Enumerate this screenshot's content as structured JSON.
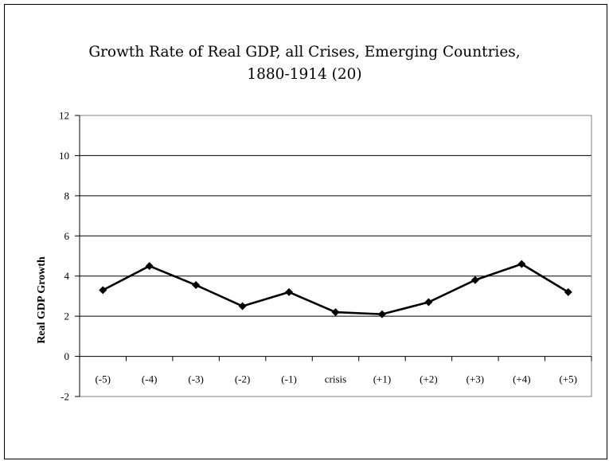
{
  "chart_data": {
    "type": "line",
    "title_line1": "Growth Rate of Real GDP, all Crises, Emerging Countries,",
    "title_line2": "1880-1914 (20)",
    "xlabel": "",
    "ylabel": "Real GDP Growth",
    "categories": [
      "(-5)",
      "(-4)",
      "(-3)",
      "(-2)",
      "(-1)",
      "crisis",
      "(+1)",
      "(+2)",
      "(+3)",
      "(+4)",
      "(+5)"
    ],
    "series": [
      {
        "values": [
          3.3,
          4.5,
          3.55,
          2.5,
          3.2,
          2.2,
          2.1,
          2.7,
          3.8,
          4.6,
          3.2
        ]
      }
    ],
    "ylim": [
      -2,
      12
    ],
    "yticks": [
      "-2",
      "0",
      "2",
      "4",
      "6",
      "8",
      "10",
      "12"
    ],
    "grid": true,
    "colors": {
      "line": "#000000",
      "grid": "#000000",
      "plot_border": "#808080"
    }
  }
}
